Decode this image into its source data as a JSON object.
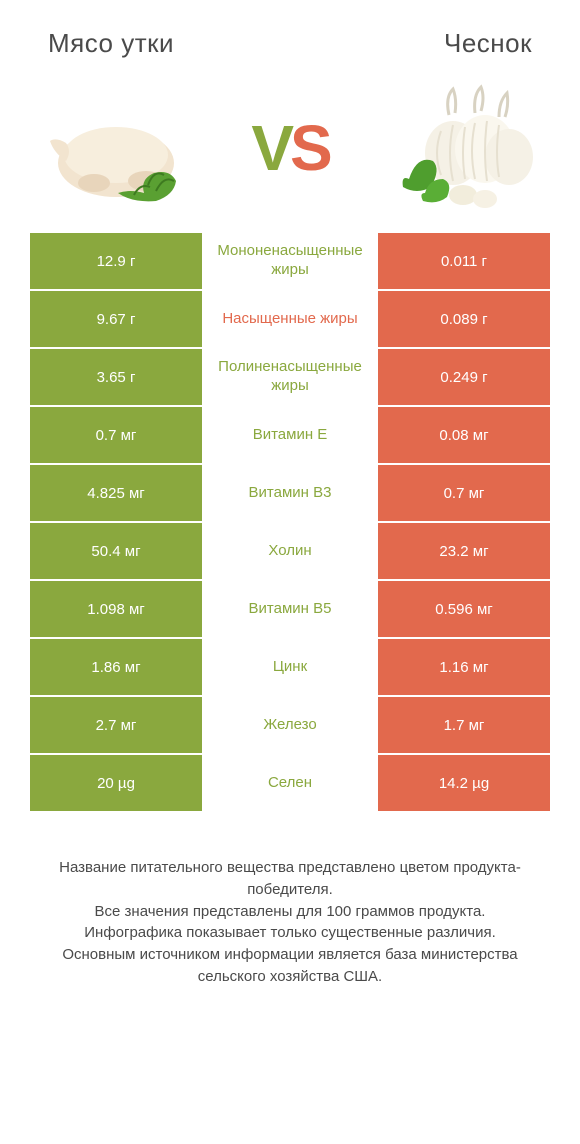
{
  "header": {
    "left_title": "Мясо утки",
    "right_title": "Чеснок"
  },
  "vs": {
    "v": "V",
    "s": "S"
  },
  "colors": {
    "green": "#8aa83e",
    "orange": "#e2694d",
    "label_green": "#8aa83e",
    "label_orange": "#e2694d",
    "text_dark": "#4a4a4a",
    "white": "#ffffff"
  },
  "table": {
    "left_bg": "#8aa83e",
    "right_bg": "#e2694d",
    "rows": [
      {
        "left": "12.9 г",
        "label": "Мононенасыщенные жиры",
        "label_color": "#8aa83e",
        "right": "0.011 г"
      },
      {
        "left": "9.67 г",
        "label": "Насыщенные жиры",
        "label_color": "#e2694d",
        "right": "0.089 г"
      },
      {
        "left": "3.65 г",
        "label": "Полиненасыщенные жиры",
        "label_color": "#8aa83e",
        "right": "0.249 г"
      },
      {
        "left": "0.7 мг",
        "label": "Витамин E",
        "label_color": "#8aa83e",
        "right": "0.08 мг"
      },
      {
        "left": "4.825 мг",
        "label": "Витамин B3",
        "label_color": "#8aa83e",
        "right": "0.7 мг"
      },
      {
        "left": "50.4 мг",
        "label": "Холин",
        "label_color": "#8aa83e",
        "right": "23.2 мг"
      },
      {
        "left": "1.098 мг",
        "label": "Витамин B5",
        "label_color": "#8aa83e",
        "right": "0.596 мг"
      },
      {
        "left": "1.86 мг",
        "label": "Цинк",
        "label_color": "#8aa83e",
        "right": "1.16 мг"
      },
      {
        "left": "2.7 мг",
        "label": "Железо",
        "label_color": "#8aa83e",
        "right": "1.7 мг"
      },
      {
        "left": "20 µg",
        "label": "Селен",
        "label_color": "#8aa83e",
        "right": "14.2 µg"
      }
    ]
  },
  "footer": {
    "line1": "Название питательного вещества представлено цветом продукта-победителя.",
    "line2": "Все значения представлены для 100 граммов продукта.",
    "line3": "Инфографика показывает только существенные различия.",
    "line4": "Основным источником информации является база министерства сельского хозяйства США."
  }
}
